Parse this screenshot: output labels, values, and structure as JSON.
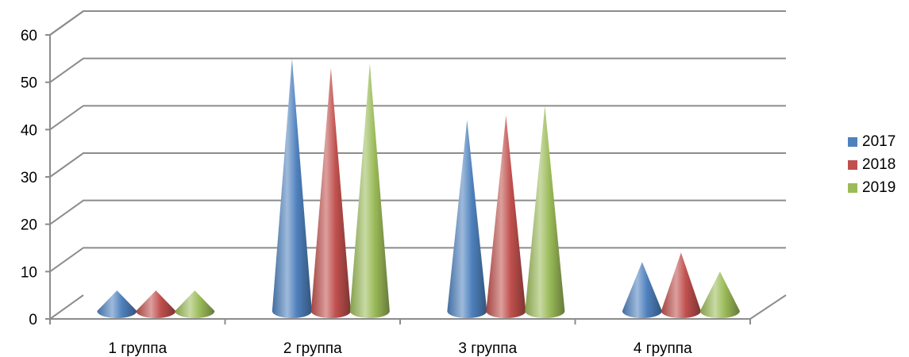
{
  "chart_data": {
    "type": "bar",
    "shape": "cone",
    "categories": [
      "1 группа",
      "2 группа",
      "3 группа",
      "4 группа"
    ],
    "series": [
      {
        "name": "2017",
        "color": "#4f81bd",
        "values": [
          3,
          52,
          39,
          9
        ]
      },
      {
        "name": "2018",
        "color": "#c0504d",
        "values": [
          3,
          50,
          40,
          11
        ]
      },
      {
        "name": "2019",
        "color": "#9bbb59",
        "values": [
          3,
          51,
          42,
          7
        ]
      }
    ],
    "ylim": [
      0,
      60
    ],
    "yticks": [
      "0",
      "10",
      "20",
      "30",
      "40",
      "50",
      "60"
    ],
    "grid": true,
    "legend": "right"
  }
}
